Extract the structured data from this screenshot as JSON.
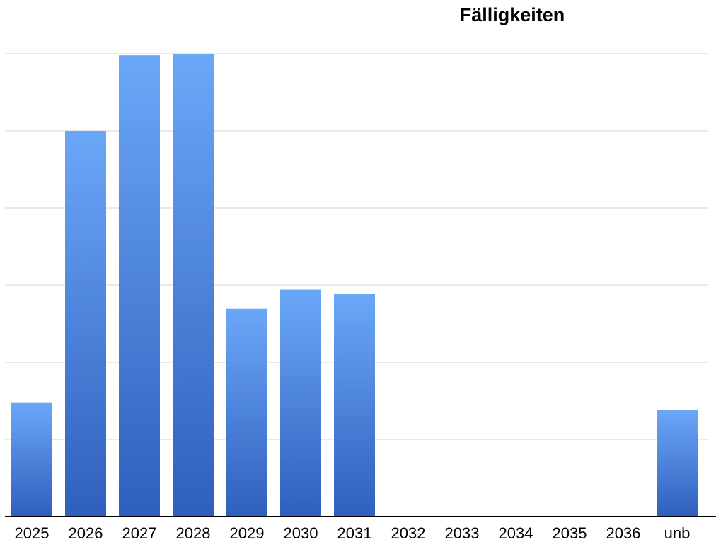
{
  "chart_data": {
    "type": "bar",
    "title": "Fälligkeiten",
    "categories": [
      "2025",
      "2026",
      "2027",
      "2028",
      "2029",
      "2030",
      "2031",
      "2032",
      "2033",
      "2034",
      "2035",
      "2036",
      "unb"
    ],
    "values": [
      1.48,
      5.0,
      5.98,
      6.0,
      2.7,
      2.94,
      2.89,
      0,
      0,
      0,
      0,
      0,
      1.38
    ],
    "color": "#4a80dc",
    "ylim": [
      0,
      6
    ],
    "gridlines": [
      1,
      2,
      3,
      4,
      5,
      6
    ],
    "grid": true
  }
}
